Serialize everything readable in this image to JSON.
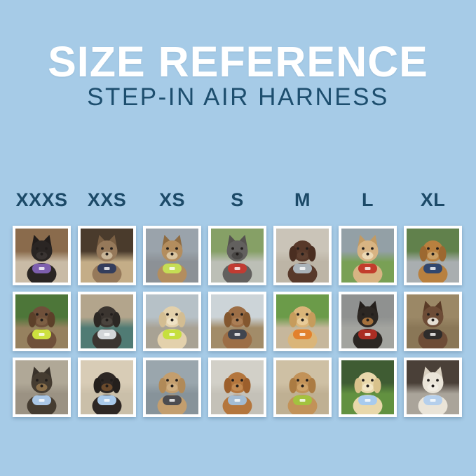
{
  "page": {
    "background_color": "#a6cbe7"
  },
  "header": {
    "title": "SIZE REFERENCE",
    "subtitle": "STEP-IN AIR HARNESS",
    "title_color": "#ffffff",
    "subtitle_color": "#1d4e6e"
  },
  "sizes": [
    "XXXS",
    "XXS",
    "XS",
    "S",
    "M",
    "L",
    "XL"
  ],
  "size_label_color": "#1c4a68",
  "grid": {
    "rows": 3,
    "columns": 7,
    "photos": [
      {
        "size": "XXXS",
        "row": 1,
        "animal": "cat",
        "description": "Black kitten wearing a purple harness indoors",
        "ears": "pointy",
        "fur": "#2a2523",
        "ear": "#221d1b",
        "muzzle": "#3a3432",
        "harness": "#7e5fae",
        "bg_top": "#8a6b4c",
        "bg_bottom": "#c9bba6"
      },
      {
        "size": "XXS",
        "row": 1,
        "animal": "cat",
        "description": "Brown tabby cat in a navy harness by a window",
        "ears": "pointy",
        "fur": "#96795a",
        "ear": "#7a5f43",
        "muzzle": "#c9b698",
        "harness": "#333d5c",
        "bg_top": "#4a3b2c",
        "bg_bottom": "#c4ad87"
      },
      {
        "size": "XS",
        "row": 1,
        "animal": "cat",
        "description": "Bengal cat in a lime green harness inside a car",
        "ears": "pointy",
        "fur": "#b38d5e",
        "ear": "#8f6c42",
        "muzzle": "#d9c4a0",
        "harness": "#c5dd55",
        "bg_top": "#9aa3ab",
        "bg_bottom": "#8c9196"
      },
      {
        "size": "S",
        "row": 1,
        "animal": "dog",
        "description": "Grey French Bulldog in a red harness on a sidewalk",
        "ears": "pointy",
        "fur": "#62605e",
        "ear": "#55524f",
        "muzzle": "#4a4846",
        "harness": "#c13b32",
        "bg_top": "#86a066",
        "bg_bottom": "#bcbfb6"
      },
      {
        "size": "M",
        "row": 1,
        "animal": "dog",
        "description": "Chocolate brown spaniel in a grey harness",
        "ears": "floppy",
        "fur": "#58392a",
        "ear": "#4a2e21",
        "muzzle": "#5f4030",
        "harness": "#aab3b9",
        "bg_top": "#cac4b8",
        "bg_bottom": "#bdb5a6"
      },
      {
        "size": "L",
        "row": 1,
        "animal": "dog",
        "description": "Cream Shiba Inu with a red ball wearing a red harness on grass",
        "ears": "pointy",
        "fur": "#d8b483",
        "ear": "#c29a63",
        "muzzle": "#ecd9b4",
        "harness": "#c23c2c",
        "bg_top": "#93a0a6",
        "bg_bottom": "#79a055"
      },
      {
        "size": "XL",
        "row": 1,
        "animal": "dog",
        "description": "Golden Retriever in a navy blue harness on a garden path",
        "ears": "floppy",
        "fur": "#b8803f",
        "ear": "#9c6830",
        "muzzle": "#caa066",
        "harness": "#31476e",
        "bg_top": "#61814c",
        "bg_bottom": "#a9aeb0"
      },
      {
        "size": "XXXS",
        "row": 2,
        "animal": "dog",
        "description": "Long-haired Dachshund puppy in a neon yellow harness outdoors",
        "ears": "floppy",
        "fur": "#6f503a",
        "ear": "#5c4029",
        "muzzle": "#7d5f43",
        "harness": "#cde13f",
        "bg_top": "#4d7639",
        "bg_bottom": "#96815f"
      },
      {
        "size": "XXS",
        "row": 2,
        "animal": "dog",
        "description": "Dark Pug puppy in a light grey harness on a car seat",
        "ears": "floppy",
        "fur": "#3b3530",
        "ear": "#2c2824",
        "muzzle": "#4a443e",
        "harness": "#d3d6d8",
        "bg_top": "#b3a58c",
        "bg_bottom": "#507b74"
      },
      {
        "size": "XS",
        "row": 2,
        "animal": "dog",
        "description": "Cream long-haired Dachshund in a neon green harness on a boat",
        "ears": "floppy",
        "fur": "#e3d1ac",
        "ear": "#d3bd92",
        "muzzle": "#efe2c4",
        "harness": "#c6df3e",
        "bg_top": "#b6c1c7",
        "bg_bottom": "#a8a294"
      },
      {
        "size": "S",
        "row": 2,
        "animal": "dog",
        "description": "Brown Dachshund in a dark grey harness on a wooden deck",
        "ears": "floppy",
        "fur": "#9c6e46",
        "ear": "#83572f",
        "muzzle": "#ab7e55",
        "harness": "#40454f",
        "bg_top": "#ccd4d8",
        "bg_bottom": "#a28c69"
      },
      {
        "size": "M",
        "row": 2,
        "animal": "dog",
        "description": "Golden Retriever puppy in an orange harness on a lawn",
        "ears": "floppy",
        "fur": "#dab579",
        "ear": "#c69c5c",
        "muzzle": "#e8cb97",
        "harness": "#e2812d",
        "bg_top": "#6b9b49",
        "bg_bottom": "#c6b79c"
      },
      {
        "size": "L",
        "row": 2,
        "animal": "dog",
        "description": "Black and tan dog in a red and black harness inside a metal tunnel",
        "ears": "pointy",
        "fur": "#2c2723",
        "ear": "#241f1c",
        "muzzle": "#a5713c",
        "harness": "#ab2d23",
        "bg_top": "#8f9190",
        "bg_bottom": "#a3a49f"
      },
      {
        "size": "XL",
        "row": 2,
        "animal": "dog",
        "description": "Brown and white dog in a black harness on wooden steps",
        "ears": "pointy",
        "fur": "#6d4c36",
        "ear": "#5a3b27",
        "muzzle": "#e4ddd2",
        "harness": "#2e2c2b",
        "bg_top": "#9b8866",
        "bg_bottom": "#8a7757"
      },
      {
        "size": "XXXS",
        "row": 3,
        "animal": "dog",
        "description": "Yorkshire Terrier puppy in a light blue harness on a sunny path",
        "ears": "pointy",
        "fur": "#453c31",
        "ear": "#39322a",
        "muzzle": "#8a6f4a",
        "harness": "#aac7e6",
        "bg_top": "#b0a897",
        "bg_bottom": "#9b9283"
      },
      {
        "size": "XXS",
        "row": 3,
        "animal": "dog",
        "description": "Black and tan Dachshund in a light blue harness on a couch",
        "ears": "floppy",
        "fur": "#2e2724",
        "ear": "#241f1c",
        "muzzle": "#6b4a2c",
        "harness": "#a9c9ea",
        "bg_top": "#d8ccb6",
        "bg_bottom": "#cabfa9"
      },
      {
        "size": "XS",
        "row": 3,
        "animal": "dog",
        "description": "Apricot Poodle puppy in a dark grey harness on a dock",
        "ears": "floppy",
        "fur": "#c39e6e",
        "ear": "#b18a58",
        "muzzle": "#cfae80",
        "harness": "#4c4c50",
        "bg_top": "#9aa6ad",
        "bg_bottom": "#87939a"
      },
      {
        "size": "S",
        "row": 3,
        "animal": "dog",
        "description": "Red Dachshund in a pale blue harness on a pavement",
        "ears": "floppy",
        "fur": "#b4763d",
        "ear": "#9c5f2c",
        "muzzle": "#c28a52",
        "harness": "#a3bcd3",
        "bg_top": "#d2d0c8",
        "bg_bottom": "#c4c1b8"
      },
      {
        "size": "M",
        "row": 3,
        "animal": "dog",
        "description": "Apricot Goldendoodle in a green harness on a sidewalk",
        "ears": "floppy",
        "fur": "#c29258",
        "ear": "#ab7b42",
        "muzzle": "#cfa369",
        "harness": "#a3c23f",
        "bg_top": "#cec0a4",
        "bg_bottom": "#bfb093"
      },
      {
        "size": "L",
        "row": 3,
        "animal": "dog",
        "description": "Cream Golden Retriever puppy in a light blue harness on grass",
        "ears": "floppy",
        "fur": "#e9d8ab",
        "ear": "#d9c28c",
        "muzzle": "#f2e6c5",
        "harness": "#a8cbee",
        "bg_top": "#3f5c33",
        "bg_bottom": "#629140"
      },
      {
        "size": "XL",
        "row": 3,
        "animal": "dog",
        "description": "White dog in a light blue harness on a city street at night",
        "ears": "pointy",
        "fur": "#eae4d8",
        "ear": "#d9d0c0",
        "muzzle": "#f2ede3",
        "harness": "#b5cfec",
        "bg_top": "#4a4038",
        "bg_bottom": "#aaa49a"
      }
    ]
  }
}
